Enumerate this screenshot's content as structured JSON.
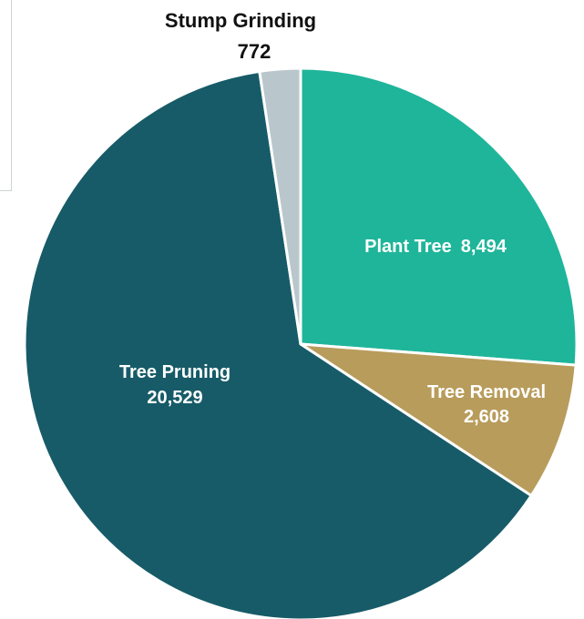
{
  "chart_data": {
    "type": "pie",
    "title": "",
    "slices": [
      {
        "label": "Plant Tree",
        "value": 8494,
        "value_text": "8,494",
        "color": "#1fb59a",
        "label_style": "inside-one-line"
      },
      {
        "label": "Tree Removal",
        "value": 2608,
        "value_text": "2,608",
        "color": "#b89c5b",
        "label_style": "inside-two-line"
      },
      {
        "label": "Tree Pruning",
        "value": 20529,
        "value_text": "20,529",
        "color": "#175b68",
        "label_style": "inside-two-line"
      },
      {
        "label": "Stump Grinding",
        "value": 772,
        "value_text": "772",
        "color": "#b9c7cc",
        "label_style": "outside-top"
      }
    ],
    "start_angle_deg": 0,
    "direction": "clockwise",
    "legend": "none",
    "slice_border_color": "#ffffff"
  }
}
